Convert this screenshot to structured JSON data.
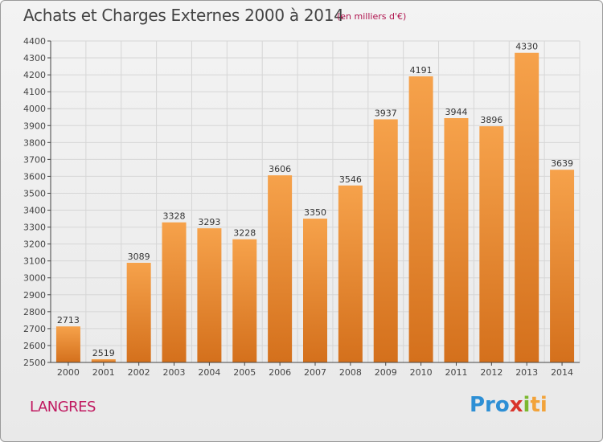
{
  "title": "Achats et Charges Externes 2000 à 2014",
  "unit_note": "(en milliers d'€)",
  "commune": "LANGRES",
  "brand": {
    "a": "Pro",
    "b": "x",
    "c": "i",
    "d": "ti"
  },
  "colors": {
    "bar_top": "#f6a24b",
    "bar_bottom": "#d4701c",
    "grid": "#d6d6d6",
    "axis": "#444444"
  },
  "chart_data": {
    "type": "bar",
    "title": "Achats et Charges Externes 2000 à 2014",
    "subtitle": "(en milliers d'€)",
    "xlabel": "",
    "ylabel": "",
    "categories": [
      "2000",
      "2001",
      "2002",
      "2003",
      "2004",
      "2005",
      "2006",
      "2007",
      "2008",
      "2009",
      "2010",
      "2011",
      "2012",
      "2013",
      "2014"
    ],
    "values": [
      2713,
      2519,
      3089,
      3328,
      3293,
      3228,
      3606,
      3350,
      3546,
      3937,
      4191,
      3944,
      3896,
      4330,
      3639
    ],
    "ylim": [
      2500,
      4400
    ],
    "yticks": [
      2500,
      2600,
      2700,
      2800,
      2900,
      3000,
      3100,
      3200,
      3300,
      3400,
      3500,
      3600,
      3700,
      3800,
      3900,
      4000,
      4100,
      4200,
      4300,
      4400
    ],
    "grid": true,
    "data_labels": true
  }
}
